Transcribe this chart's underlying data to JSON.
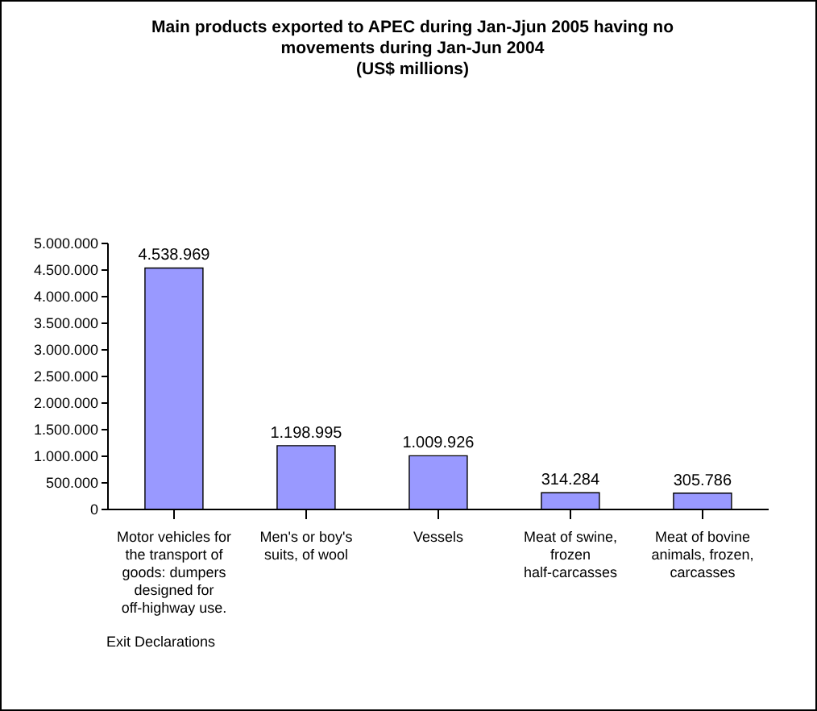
{
  "chart_data": {
    "type": "bar",
    "title": "Main products exported to  APEC during Jan-Jjun 2005 having no movements during Jan-Jun 2004",
    "subtitle": "(US$ millions)",
    "categories": [
      "Motor vehicles for the transport of goods: dumpers designed for off-highway use.",
      "Men's or boy's suits, of wool",
      "Vessels",
      "Meat of swine, frozen half-carcasses",
      "Meat of bovine animals, frozen, carcasses"
    ],
    "values": [
      4538969,
      1198995,
      1009926,
      314284,
      305786
    ],
    "value_labels": [
      "4.538.969",
      "1.198.995",
      "1.009.926",
      "314.284",
      "305.786"
    ],
    "color": "#9999ff",
    "ylim": [
      0,
      5000000
    ],
    "yticks": [
      {
        "value": 0,
        "label": "0"
      },
      {
        "value": 500000,
        "label": "500.000"
      },
      {
        "value": 1000000,
        "label": "1.000.000"
      },
      {
        "value": 1500000,
        "label": "1.500.000"
      },
      {
        "value": 2000000,
        "label": "2.000.000"
      },
      {
        "value": 2500000,
        "label": "2.500.000"
      },
      {
        "value": 3000000,
        "label": "3.000.000"
      },
      {
        "value": 3500000,
        "label": "3.500.000"
      },
      {
        "value": 4000000,
        "label": "4.000.000"
      },
      {
        "value": 4500000,
        "label": "4.500.000"
      },
      {
        "value": 5000000,
        "label": "5.000.000"
      }
    ],
    "grid": false,
    "legend": false,
    "annotations": [
      "Exit Declarations"
    ]
  }
}
